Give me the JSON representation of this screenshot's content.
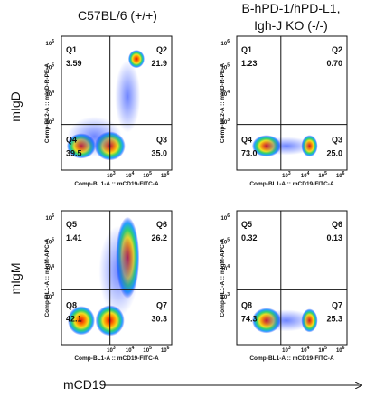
{
  "header": {
    "left": "C57BL/6 (+/+)",
    "right_line1": "B-hPD-1/hPD-L1,",
    "right_line2": "Igh-J KO (-/-)"
  },
  "rows": [
    "mIgD",
    "mIgM"
  ],
  "x_axis_title": "mCD19",
  "axis": {
    "x_label": "Comp-BL1-A :: mCD19-FITC-A",
    "tick_base": "10",
    "x_exponents": [
      "3",
      "4",
      "5",
      "6"
    ],
    "y_exponents": [
      "6",
      "5",
      "4",
      "3"
    ]
  },
  "panels": [
    {
      "y_label": "Comp-BL2-A :: mIgD-R-PE-A",
      "quadrants": [
        {
          "label": "Q1",
          "value": "3.59"
        },
        {
          "label": "Q2",
          "value": "21.9"
        },
        {
          "label": "Q4",
          "value": "39.5"
        },
        {
          "label": "Q3",
          "value": "35.0"
        }
      ]
    },
    {
      "y_label": "Comp-BL2-A :: mIgD-R-PE-A",
      "quadrants": [
        {
          "label": "Q1",
          "value": "1.23"
        },
        {
          "label": "Q2",
          "value": "0.70"
        },
        {
          "label": "Q4",
          "value": "73.0"
        },
        {
          "label": "Q3",
          "value": "25.0"
        }
      ]
    },
    {
      "y_label": "Comp-RL1-A :: mIgM-APC-A",
      "quadrants": [
        {
          "label": "Q5",
          "value": "1.41"
        },
        {
          "label": "Q6",
          "value": "26.2"
        },
        {
          "label": "Q8",
          "value": "42.1"
        },
        {
          "label": "Q7",
          "value": "30.3"
        }
      ]
    },
    {
      "y_label": "Comp-RL1-A :: mIgM-APC-A",
      "quadrants": [
        {
          "label": "Q5",
          "value": "0.32"
        },
        {
          "label": "Q6",
          "value": "0.13"
        },
        {
          "label": "Q8",
          "value": "74.3"
        },
        {
          "label": "Q7",
          "value": "25.3"
        }
      ]
    }
  ]
}
